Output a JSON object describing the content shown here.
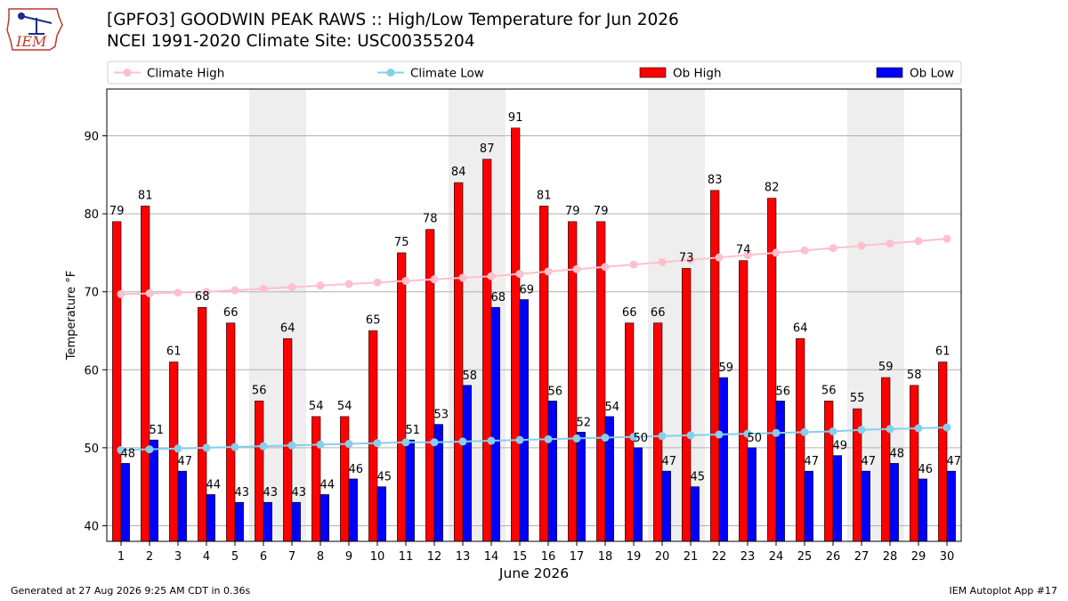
{
  "header": {
    "title": "[GPFO3] GOODWIN PEAK RAWS :: High/Low Temperature for Jun 2026",
    "subtitle": "NCEI 1991-2020 Climate Site: USC00355204"
  },
  "logo": {
    "text": "IEM",
    "icon": "iowa-state-outline-icon"
  },
  "footer": {
    "left": "Generated at 27 Aug 2026 9:25 AM CDT in 0.36s",
    "right": "IEM Autoplot App #17"
  },
  "colors": {
    "ob_high": "#ff0000",
    "ob_low": "#0000ff",
    "climate_high": "#ffc0cb",
    "climate_low": "#87ceeb",
    "weekend_shade": "#eeeeee",
    "grid": "#b0b0b0"
  },
  "chart_data": {
    "type": "bar",
    "xlabel": "June 2026",
    "ylabel": "Temperature °F",
    "ylim": [
      38,
      96
    ],
    "yticks": [
      40,
      50,
      60,
      70,
      80,
      90
    ],
    "grid": "horizontal",
    "legend_position": "top",
    "shaded_days": [
      6,
      7,
      13,
      14,
      20,
      21,
      27,
      28
    ],
    "categories": [
      "1",
      "2",
      "3",
      "4",
      "5",
      "6",
      "7",
      "8",
      "9",
      "10",
      "11",
      "12",
      "13",
      "14",
      "15",
      "16",
      "17",
      "18",
      "19",
      "20",
      "21",
      "22",
      "23",
      "24",
      "25",
      "26",
      "27",
      "28",
      "29",
      "30"
    ],
    "series": [
      {
        "name": "Ob High",
        "kind": "bar",
        "values": [
          79,
          81,
          61,
          68,
          66,
          56,
          64,
          54,
          54,
          65,
          75,
          78,
          84,
          87,
          91,
          81,
          79,
          79,
          66,
          66,
          73,
          83,
          74,
          82,
          64,
          56,
          55,
          59,
          58,
          61
        ]
      },
      {
        "name": "Ob Low",
        "kind": "bar",
        "values": [
          48,
          51,
          47,
          44,
          43,
          43,
          43,
          44,
          46,
          45,
          51,
          53,
          58,
          68,
          69,
          56,
          52,
          54,
          50,
          47,
          45,
          59,
          50,
          56,
          47,
          49,
          47,
          48,
          46,
          47
        ]
      },
      {
        "name": "Climate High",
        "kind": "line",
        "values": [
          69.7,
          69.8,
          69.9,
          70.0,
          70.2,
          70.4,
          70.6,
          70.8,
          71.0,
          71.2,
          71.4,
          71.6,
          71.8,
          72.0,
          72.3,
          72.6,
          72.9,
          73.2,
          73.5,
          73.8,
          74.1,
          74.4,
          74.7,
          75.0,
          75.3,
          75.6,
          75.9,
          76.2,
          76.5,
          76.8
        ]
      },
      {
        "name": "Climate Low",
        "kind": "line",
        "values": [
          49.7,
          49.8,
          49.9,
          50.0,
          50.1,
          50.2,
          50.3,
          50.4,
          50.5,
          50.6,
          50.7,
          50.7,
          50.8,
          50.9,
          51.0,
          51.1,
          51.2,
          51.3,
          51.4,
          51.5,
          51.6,
          51.7,
          51.8,
          51.9,
          52.0,
          52.1,
          52.3,
          52.4,
          52.5,
          52.6
        ]
      }
    ]
  }
}
